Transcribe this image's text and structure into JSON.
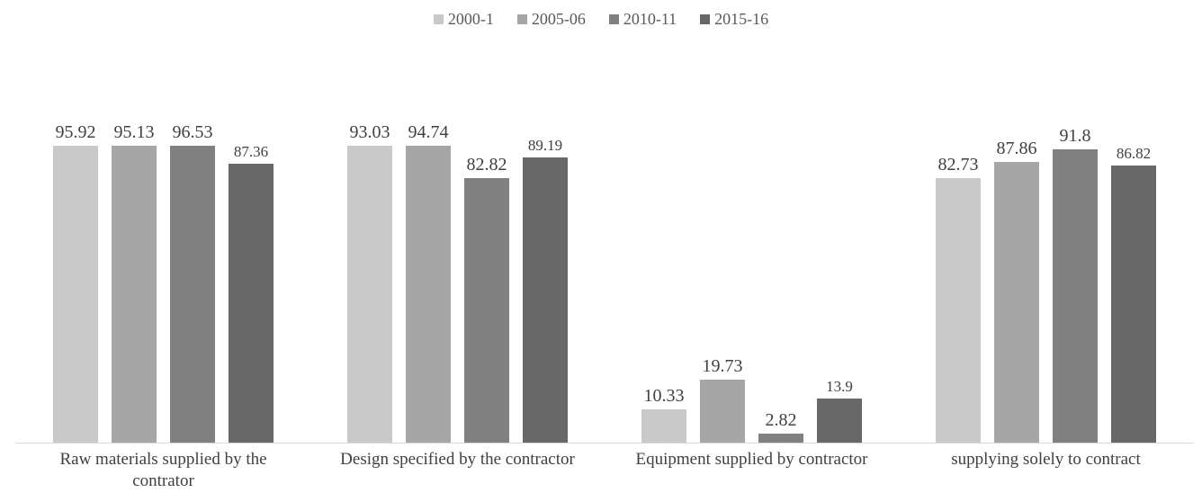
{
  "chart_data": {
    "type": "bar",
    "title": "",
    "categories": [
      "Raw materials supplied by the contrator",
      "Design specified by the contractor",
      "Equipment supplied by contractor",
      "supplying solely to contract"
    ],
    "series": [
      {
        "name": "2000-1",
        "color": "#c9c9c9",
        "values": [
          95.92,
          93.03,
          10.33,
          82.73
        ]
      },
      {
        "name": "2005-06",
        "color": "#a6a6a6",
        "values": [
          95.13,
          94.74,
          19.73,
          87.86
        ]
      },
      {
        "name": "2010-11",
        "color": "#808080",
        "values": [
          96.53,
          82.82,
          2.82,
          91.8
        ]
      },
      {
        "name": "2015-16",
        "color": "#686868",
        "values": [
          87.36,
          89.19,
          13.9,
          86.82
        ]
      }
    ],
    "ylim": [
      0,
      100
    ],
    "grid": false,
    "y_axis_visible": false,
    "legend_position": "top",
    "value_labels": true,
    "axis_line_color": "#d9d9d9",
    "value_label_color": "#404040",
    "category_label_color": "#404040",
    "legend_text_color": "#595959",
    "background_color": "#ffffff"
  }
}
